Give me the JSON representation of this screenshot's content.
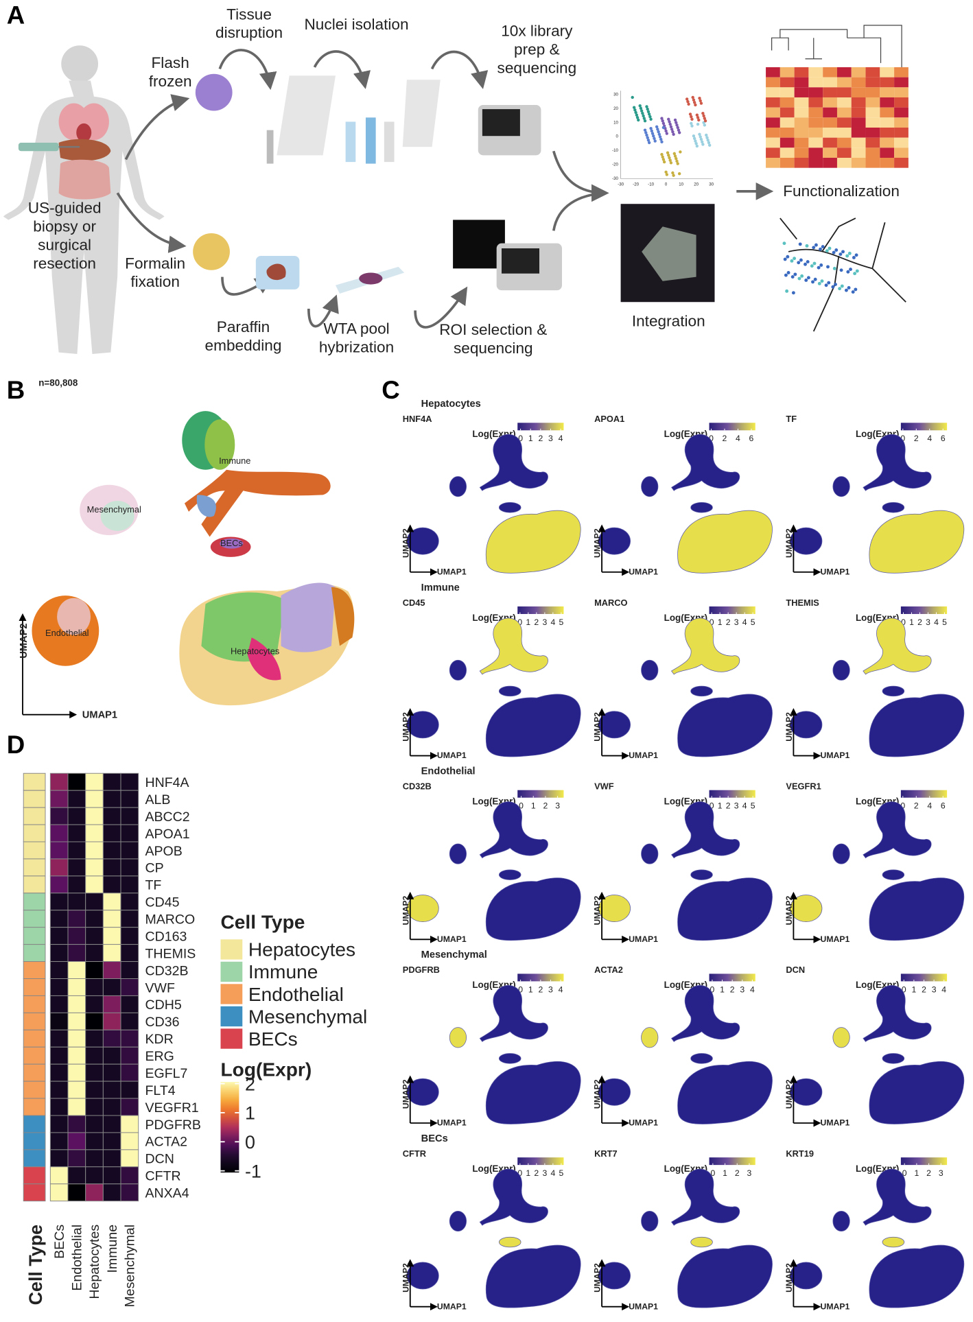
{
  "panel_labels": [
    "A",
    "B",
    "C",
    "D"
  ],
  "workflow": {
    "labels": [
      [
        "Tissue",
        "disruption"
      ],
      [
        "Nuclei isolation"
      ],
      [
        "10x library",
        "prep &",
        "sequencing"
      ],
      [
        "Flash",
        "frozen"
      ],
      [
        "US-guided",
        "biopsy or",
        "surgical",
        "resection"
      ],
      [
        "Formalin",
        "fixation"
      ],
      [
        "Paraffin",
        "embedding"
      ],
      [
        "WTA pool",
        "hybrization"
      ],
      [
        "ROI selection &",
        "sequencing"
      ],
      [
        "Integration"
      ],
      [
        "Functionalization"
      ]
    ],
    "mini_xticks": [
      -30,
      -20,
      -10,
      0,
      10,
      20,
      30
    ],
    "mini_yticks": [
      30,
      20,
      10,
      0,
      -10,
      -20,
      -30
    ]
  },
  "umap_overview": {
    "n_label": "n=80,808",
    "clusters": [
      "Immune",
      "Mesenchymal",
      "BECs",
      "Endothelial",
      "Hepatocytes"
    ],
    "x_label": "UMAP1",
    "y_label": "UMAP2"
  },
  "feature_plots": {
    "colorbar_title": "Log(Expr)",
    "x_label": "UMAP1",
    "y_label": "UMAP2",
    "groups": [
      {
        "name": "Hepatocytes",
        "genes": [
          {
            "name": "HNF4A",
            "clim": [
              -0.3,
              4.3
            ],
            "ticks": [
              0,
              1,
              2,
              3,
              4
            ]
          },
          {
            "name": "APOA1",
            "clim": [
              -0.3,
              6.6
            ],
            "ticks": [
              0,
              2,
              4,
              6
            ]
          },
          {
            "name": "TF",
            "clim": [
              -0.3,
              6.6
            ],
            "ticks": [
              0,
              2,
              4,
              6
            ]
          }
        ]
      },
      {
        "name": "Immune",
        "genes": [
          {
            "name": "CD45",
            "clim": [
              -0.3,
              5.3
            ],
            "ticks": [
              0,
              1,
              2,
              3,
              4,
              5
            ]
          },
          {
            "name": "MARCO",
            "clim": [
              -0.3,
              5.3
            ],
            "ticks": [
              0,
              1,
              2,
              3,
              4,
              5
            ]
          },
          {
            "name": "THEMIS",
            "clim": [
              -0.3,
              5.3
            ],
            "ticks": [
              0,
              1,
              2,
              3,
              4,
              5
            ]
          }
        ]
      },
      {
        "name": "Endothelial",
        "genes": [
          {
            "name": "CD32B",
            "clim": [
              -0.3,
              3.5
            ],
            "ticks": [
              0,
              1,
              2,
              3
            ]
          },
          {
            "name": "VWF",
            "clim": [
              -0.3,
              5.3
            ],
            "ticks": [
              0,
              1,
              2,
              3,
              4,
              5
            ]
          },
          {
            "name": "VEGFR1",
            "clim": [
              -0.3,
              6.6
            ],
            "ticks": [
              0,
              2,
              4,
              6
            ]
          }
        ]
      },
      {
        "name": "Mesenchymal",
        "genes": [
          {
            "name": "PDGFRB",
            "clim": [
              -0.3,
              4.3
            ],
            "ticks": [
              0,
              1,
              2,
              3,
              4
            ]
          },
          {
            "name": "ACTA2",
            "clim": [
              -0.3,
              4.3
            ],
            "ticks": [
              0,
              1,
              2,
              3,
              4
            ]
          },
          {
            "name": "DCN",
            "clim": [
              -0.3,
              4.3
            ],
            "ticks": [
              0,
              1,
              2,
              3,
              4
            ]
          }
        ]
      },
      {
        "name": "BECs",
        "genes": [
          {
            "name": "CFTR",
            "clim": [
              -0.3,
              5.3
            ],
            "ticks": [
              0,
              1,
              2,
              3,
              4,
              5
            ]
          },
          {
            "name": "KRT7",
            "clim": [
              -0.3,
              3.5
            ],
            "ticks": [
              0,
              1,
              2,
              3
            ]
          },
          {
            "name": "KRT19",
            "clim": [
              -0.3,
              3.5
            ],
            "ticks": [
              0,
              1,
              2,
              3
            ]
          }
        ]
      }
    ]
  },
  "heatmap": {
    "cell_type_title": "Cell Type",
    "colorbar_title": "Log(Expr)",
    "clim": [
      -1,
      2
    ],
    "ticks": [
      2,
      1,
      0,
      -1
    ],
    "columns": [
      "BECs",
      "Endothelial",
      "Hepatocytes",
      "Immune",
      "Mesenchymal"
    ],
    "groups": [
      {
        "name": "Hepatocytes",
        "color": "#f3e79b",
        "rows": [
          {
            "gene": "HNF4A",
            "values": [
              0.3,
              -1,
              2,
              -0.6,
              -0.6
            ]
          },
          {
            "gene": "ALB",
            "values": [
              0.1,
              -0.6,
              2,
              -0.6,
              -0.6
            ]
          },
          {
            "gene": "ABCC2",
            "values": [
              -0.3,
              -0.6,
              2,
              -0.6,
              -0.6
            ]
          },
          {
            "gene": "APOA1",
            "values": [
              0,
              -0.6,
              2,
              -0.6,
              -0.6
            ]
          },
          {
            "gene": "APOB",
            "values": [
              0,
              -0.6,
              2,
              -0.6,
              -0.6
            ]
          },
          {
            "gene": "CP",
            "values": [
              0.3,
              -0.6,
              2,
              -0.6,
              -0.6
            ]
          },
          {
            "gene": "TF",
            "values": [
              0,
              -0.6,
              2,
              -0.6,
              -0.6
            ]
          }
        ]
      },
      {
        "name": "Immune",
        "color": "#9dd5a8",
        "rows": [
          {
            "gene": "CD45",
            "values": [
              -0.6,
              -0.6,
              -0.6,
              2,
              -0.6
            ]
          },
          {
            "gene": "MARCO",
            "values": [
              -0.6,
              -0.3,
              -0.6,
              2,
              -0.6
            ]
          },
          {
            "gene": "CD163",
            "values": [
              -0.6,
              -0.3,
              -0.6,
              2,
              -0.6
            ]
          },
          {
            "gene": "THEMIS",
            "values": [
              -0.6,
              -0.3,
              -0.6,
              2,
              -0.6
            ]
          }
        ]
      },
      {
        "name": "Endothelial",
        "color": "#f59e5a",
        "rows": [
          {
            "gene": "CD32B",
            "values": [
              -0.6,
              2,
              -1,
              0.2,
              -0.6
            ]
          },
          {
            "gene": "VWF",
            "values": [
              -0.6,
              2,
              -0.6,
              -0.6,
              -0.3
            ]
          },
          {
            "gene": "CDH5",
            "values": [
              -0.6,
              2,
              -0.6,
              0.2,
              -0.6
            ]
          },
          {
            "gene": "CD36",
            "values": [
              -0.8,
              2,
              -1,
              0.3,
              -0.6
            ]
          },
          {
            "gene": "KDR",
            "values": [
              -0.6,
              2,
              -0.6,
              -0.3,
              -0.3
            ]
          },
          {
            "gene": "ERG",
            "values": [
              -0.6,
              2,
              -0.6,
              -0.6,
              -0.3
            ]
          },
          {
            "gene": "EGFL7",
            "values": [
              -0.6,
              2,
              -0.6,
              -0.6,
              -0.3
            ]
          },
          {
            "gene": "FLT4",
            "values": [
              -0.6,
              2,
              -0.6,
              -0.6,
              -0.6
            ]
          },
          {
            "gene": "VEGFR1",
            "values": [
              -0.6,
              2,
              -0.6,
              -0.6,
              -0.3
            ]
          }
        ]
      },
      {
        "name": "Mesenchymal",
        "color": "#3d8fc2",
        "rows": [
          {
            "gene": "PDGFRB",
            "values": [
              -0.6,
              -0.3,
              -0.6,
              -0.6,
              2
            ]
          },
          {
            "gene": "ACTA2",
            "values": [
              -0.6,
              0,
              -0.6,
              -0.6,
              2
            ]
          },
          {
            "gene": "DCN",
            "values": [
              -0.6,
              -0.3,
              -0.6,
              -0.6,
              2
            ]
          }
        ]
      },
      {
        "name": "BECs",
        "color": "#d9434e",
        "rows": [
          {
            "gene": "CFTR",
            "values": [
              2,
              -0.6,
              -0.6,
              -0.6,
              -0.3
            ]
          },
          {
            "gene": "ANXA4",
            "values": [
              2,
              -1,
              0.3,
              -0.6,
              -0.3
            ]
          }
        ]
      }
    ]
  }
}
